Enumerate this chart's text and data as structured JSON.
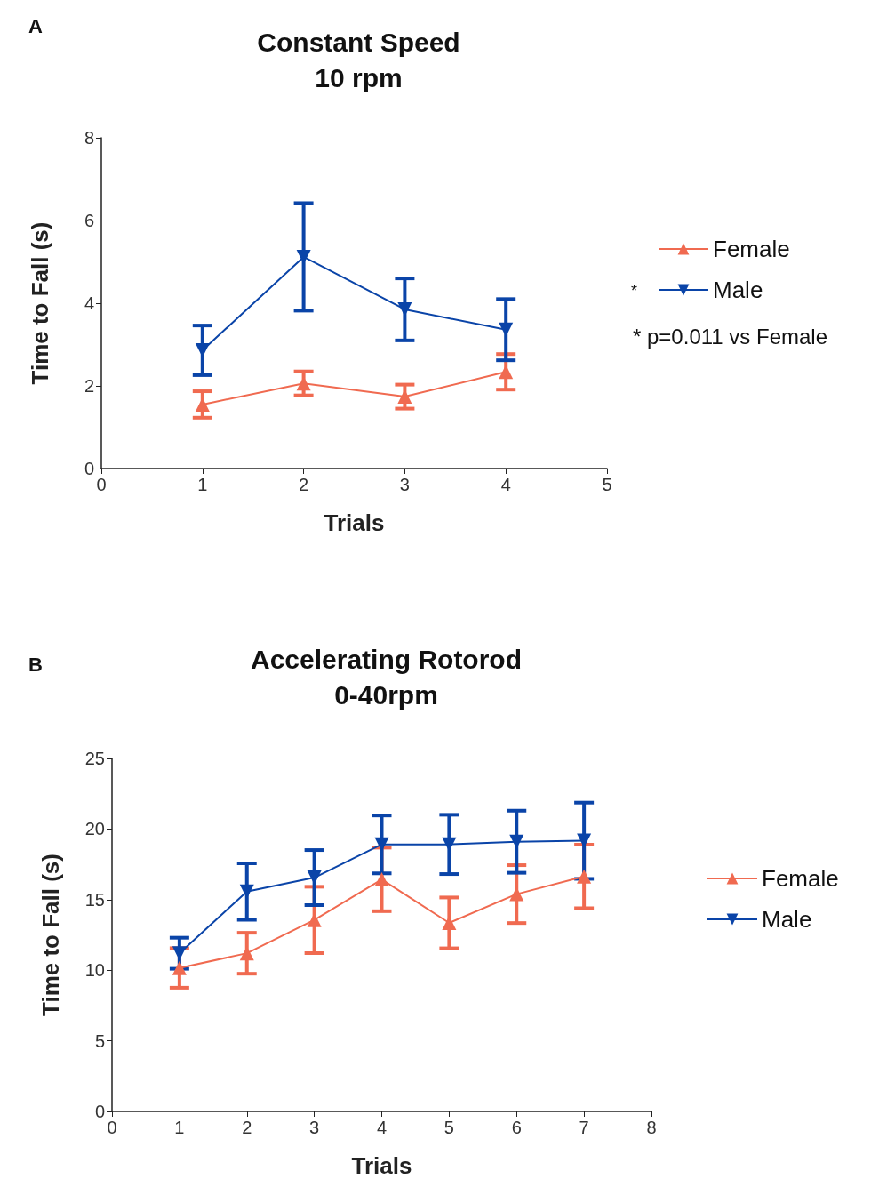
{
  "chart_data": [
    {
      "type": "line",
      "title": "Constant Speed\n10 rpm",
      "xlabel": "Trials",
      "ylabel": "Time to Fall (s)",
      "x": [
        1,
        2,
        3,
        4
      ],
      "xlim": [
        0,
        5
      ],
      "xticks": [
        0,
        1,
        2,
        3,
        4,
        5
      ],
      "ylim": [
        0,
        8
      ],
      "yticks": [
        0,
        2,
        4,
        6,
        8
      ],
      "grid": false,
      "legend": "right",
      "marker": "triangle",
      "line_style": "solid",
      "annotations": [
        "A",
        "*",
        "* p=0.011 vs Female"
      ],
      "series": [
        {
          "name": "Female",
          "color": "#f06a50",
          "values": [
            1.55,
            2.06,
            1.74,
            2.34
          ],
          "errors": [
            0.32,
            0.29,
            0.29,
            0.43
          ]
        },
        {
          "name": "Male",
          "color": "#0a44a8",
          "marker": "triangle-down",
          "values": [
            2.86,
            5.12,
            3.85,
            3.36
          ],
          "errors": [
            0.6,
            1.3,
            0.75,
            0.74
          ]
        }
      ]
    },
    {
      "type": "line",
      "title": "Accelerating Rotorod\n0-40rpm",
      "xlabel": "Trials",
      "ylabel": "Time to Fall (s)",
      "x": [
        1,
        2,
        3,
        4,
        5,
        6,
        7
      ],
      "xlim": [
        0,
        8
      ],
      "xticks": [
        0,
        1,
        2,
        3,
        4,
        5,
        6,
        7,
        8
      ],
      "ylim": [
        0,
        25
      ],
      "yticks": [
        0,
        5,
        10,
        15,
        20,
        25
      ],
      "grid": false,
      "legend": "right",
      "marker": "triangle",
      "line_style": "solid",
      "annotations": [
        "B"
      ],
      "series": [
        {
          "name": "Female",
          "color": "#f06a50",
          "values": [
            10.16,
            11.2,
            13.56,
            16.43,
            13.35,
            15.39,
            16.64
          ],
          "errors": [
            1.4,
            1.45,
            2.35,
            2.25,
            1.8,
            2.05,
            2.25
          ]
        },
        {
          "name": "Male",
          "color": "#0a44a8",
          "marker": "triangle-down",
          "values": [
            11.2,
            15.57,
            16.56,
            18.91,
            18.91,
            19.1,
            19.17
          ],
          "errors": [
            1.1,
            2.0,
            1.95,
            2.05,
            2.1,
            2.2,
            2.7
          ]
        }
      ]
    }
  ]
}
